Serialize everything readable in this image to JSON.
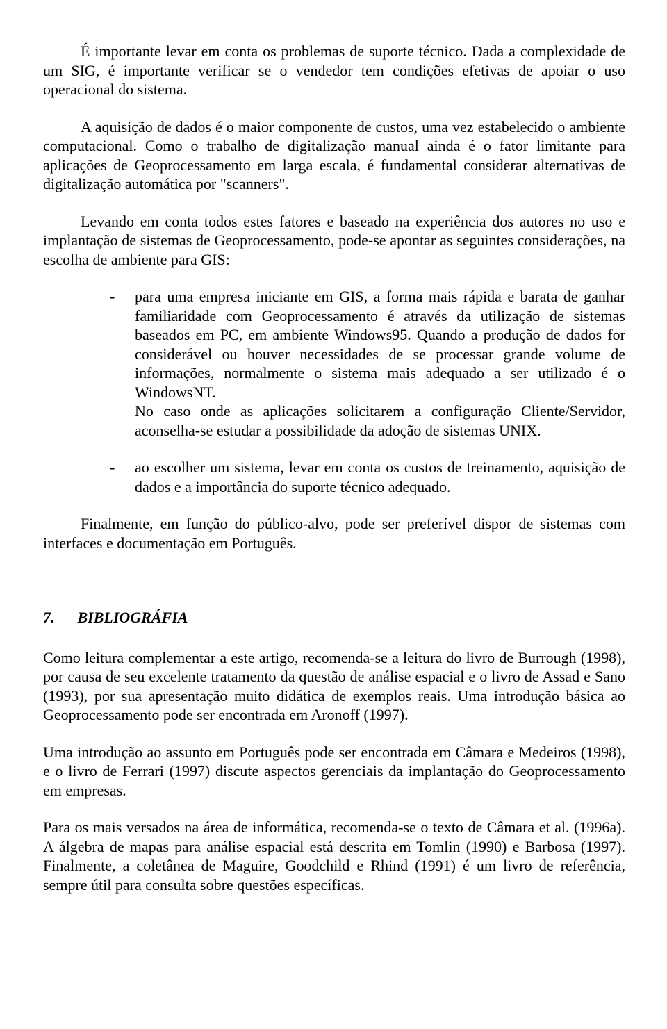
{
  "paragraphs": {
    "p1": "É importante levar em conta os problemas de suporte técnico. Dada a complexidade de um SIG, é importante verificar se o vendedor tem condições efetivas de apoiar o uso operacional do sistema.",
    "p2": "A aquisição de dados é o maior componente de custos, uma vez estabelecido o ambiente computacional. Como o trabalho de digitalização manual ainda é o fator limitante para aplicações de Geoprocessamento em larga escala, é fundamental considerar alternativas de digitalização automática por \"scanners\".",
    "p3": "Levando em conta todos estes fatores e baseado na experiência dos autores no uso e implantação de sistemas de Geoprocessamento, pode-se apontar as seguintes considerações, na escolha de ambiente para GIS:",
    "bullet1_part1": "para uma empresa iniciante em GIS, a forma mais rápida e barata de ganhar familiaridade com Geoprocessamento é através da utilização de sistemas baseados em PC, em ambiente Windows95. Quando a produção de dados for considerável ou houver necessidades de se processar grande volume de informações, normalmente o sistema mais adequado a ser utilizado é o WindowsNT.",
    "bullet1_part2": "No caso onde as aplicações solicitarem a configuração Cliente/Servidor, aconselha-se estudar a possibilidade da adoção de sistemas UNIX.",
    "bullet2": "ao escolher um sistema, levar em conta os custos de treinamento, aquisição de dados e a importância do suporte técnico adequado.",
    "p4": "Finalmente, em função do público-alvo, pode ser preferível dispor de sistemas com interfaces e documentação em Português.",
    "section_number": "7.",
    "section_title": "BIBLIOGRÁFIA",
    "p5": "Como leitura complementar a este artigo, recomenda-se a leitura do livro de Burrough (1998), por causa de seu excelente tratamento da questão de análise espacial e o livro de Assad e Sano (1993), por sua apresentação muito didática de exemplos reais.  Uma introdução básica ao Geoprocessamento pode ser encontrada em Aronoff (1997).",
    "p6": "Uma introdução ao assunto em Português pode ser encontrada em Câmara e Medeiros (1998), e o livro de Ferrari (1997) discute aspectos gerenciais da implantação do Geoprocessamento em empresas.",
    "p7": "Para os mais versados na área de informática, recomenda-se o texto de Câmara et al. (1996a).  A álgebra de mapas para análise espacial está descrita em Tomlin (1990) e Barbosa (1997). Finalmente, a coletânea de Maguire, Goodchild e Rhind (1991) é um livro de referência, sempre útil para consulta sobre questões específicas."
  },
  "bullet_char": "-"
}
